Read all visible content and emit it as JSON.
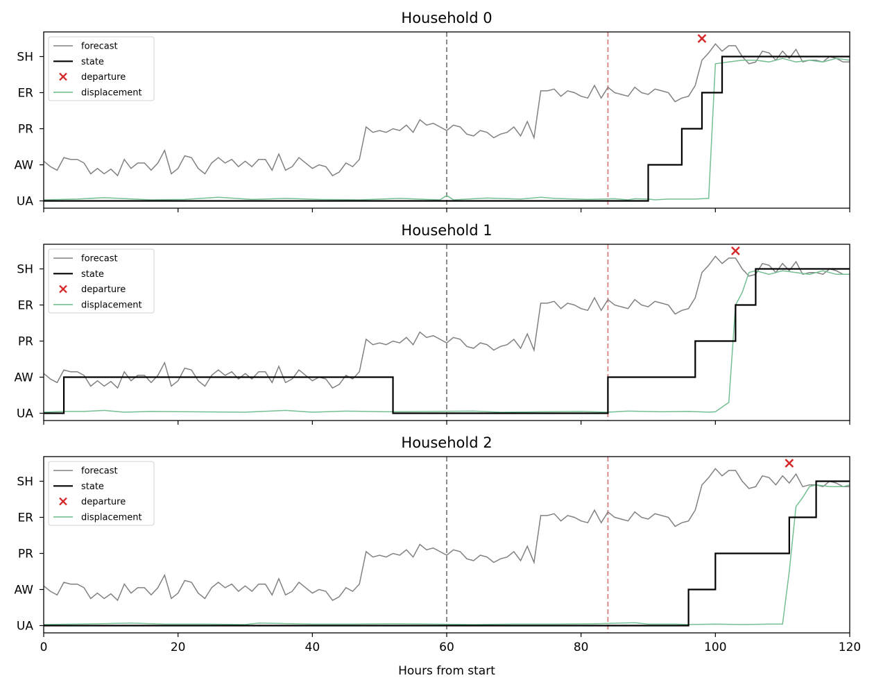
{
  "chart_data": {
    "type": "line",
    "xlabel": "Hours from start",
    "xlim": [
      0,
      120
    ],
    "x_ticks": [
      0,
      20,
      40,
      60,
      80,
      100,
      120
    ],
    "y_categories": [
      "UA",
      "AW",
      "PR",
      "ER",
      "SH"
    ],
    "vlines": [
      {
        "x": 60,
        "color": "#8c8c8c",
        "style": "dashed"
      },
      {
        "x": 84,
        "color": "#d98c8c",
        "style": "dashed"
      }
    ],
    "legend": {
      "placement": "upper-left",
      "entries": [
        {
          "label": "forecast",
          "color": "#808080",
          "kind": "line"
        },
        {
          "label": "state",
          "color": "#000000",
          "kind": "line"
        },
        {
          "label": "departure",
          "color": "#d62728",
          "kind": "marker"
        },
        {
          "label": "displacement",
          "color": "#73bf91",
          "kind": "line"
        }
      ]
    },
    "forecast": {
      "x": [
        0,
        1,
        2,
        3,
        4,
        5,
        6,
        7,
        8,
        9,
        10,
        11,
        12,
        13,
        14,
        15,
        16,
        17,
        18,
        19,
        20,
        21,
        22,
        23,
        24,
        25,
        26,
        27,
        28,
        29,
        30,
        31,
        32,
        33,
        34,
        35,
        36,
        37,
        38,
        39,
        40,
        41,
        42,
        43,
        44,
        45,
        46,
        47,
        48,
        49,
        50,
        51,
        52,
        53,
        54,
        55,
        56,
        57,
        58,
        59,
        60,
        61,
        62,
        63,
        64,
        65,
        66,
        67,
        68,
        69,
        70,
        71,
        72,
        73,
        74,
        75,
        76,
        77,
        78,
        79,
        80,
        81,
        82,
        83,
        84,
        85,
        86,
        87,
        88,
        89,
        90,
        91,
        92,
        93,
        94,
        95,
        96,
        97,
        98,
        99,
        100,
        101,
        102,
        103,
        104,
        105,
        106,
        107,
        108,
        109,
        110,
        111,
        112,
        113,
        114,
        115,
        116,
        117,
        118,
        119,
        120
      ],
      "y": [
        1.1,
        0.95,
        0.85,
        1.2,
        1.15,
        1.15,
        1.05,
        0.75,
        0.9,
        0.75,
        0.88,
        0.7,
        1.15,
        0.9,
        1.05,
        1.05,
        0.85,
        1.05,
        1.4,
        0.75,
        0.9,
        1.25,
        1.2,
        0.9,
        0.75,
        1.05,
        1.2,
        1.05,
        1.15,
        0.95,
        1.1,
        0.95,
        1.15,
        1.15,
        0.85,
        1.3,
        0.85,
        0.95,
        1.2,
        1.05,
        0.9,
        1.0,
        0.95,
        0.7,
        0.8,
        1.05,
        0.95,
        1.15,
        2.05,
        1.9,
        1.95,
        1.9,
        2.0,
        1.95,
        2.1,
        1.9,
        2.25,
        2.1,
        2.15,
        2.05,
        1.95,
        2.1,
        2.05,
        1.85,
        1.8,
        1.95,
        1.9,
        1.75,
        1.85,
        1.9,
        2.05,
        1.8,
        2.2,
        1.75,
        3.05,
        3.05,
        3.1,
        2.9,
        3.05,
        3.0,
        2.9,
        2.85,
        3.2,
        2.85,
        3.15,
        3.0,
        2.95,
        2.9,
        3.15,
        3.0,
        2.95,
        3.1,
        3.05,
        3.0,
        2.75,
        2.85,
        2.9,
        3.2,
        3.9,
        4.1,
        4.35,
        4.15,
        4.3,
        4.3,
        4.0,
        3.8,
        3.85,
        4.15,
        4.1,
        3.9,
        4.15,
        3.95,
        4.2,
        3.85,
        3.9,
        3.9,
        3.85,
        4.0,
        3.95,
        3.85,
        3.85
      ]
    },
    "panels": [
      {
        "title": "Household 0",
        "departure": {
          "x": 98,
          "y": 4.5
        },
        "state": {
          "x": [
            0,
            90,
            90,
            95,
            95,
            98,
            98,
            101,
            101,
            120
          ],
          "y": [
            0,
            0,
            1,
            1,
            2,
            2,
            3,
            3,
            4,
            4
          ]
        },
        "displacement": {
          "x": [
            0,
            5,
            9,
            16,
            21,
            26,
            31,
            36,
            41,
            47,
            53,
            57,
            59,
            60,
            61,
            66,
            71,
            74,
            76,
            81,
            85,
            87,
            88,
            90,
            91,
            93,
            95,
            97,
            99,
            100,
            102,
            104,
            106,
            108,
            110,
            112,
            114,
            116,
            118,
            120
          ],
          "y": [
            0.03,
            0.05,
            0.09,
            0.03,
            0.04,
            0.1,
            0.04,
            0.07,
            0.04,
            0.03,
            0.07,
            0.04,
            0.03,
            0.15,
            0.03,
            0.08,
            0.05,
            0.1,
            0.07,
            0.04,
            0.06,
            0.03,
            0.06,
            0.05,
            0.03,
            0.05,
            0.05,
            0.05,
            0.07,
            3.8,
            3.85,
            3.9,
            3.9,
            3.85,
            3.95,
            3.85,
            3.9,
            3.85,
            3.95,
            3.9
          ]
        }
      },
      {
        "title": "Household 1",
        "departure": {
          "x": 103,
          "y": 4.5
        },
        "state": {
          "x": [
            0,
            3,
            3,
            52,
            52,
            84,
            84,
            97,
            97,
            103,
            103,
            106,
            106,
            120
          ],
          "y": [
            0,
            0,
            1,
            1,
            0,
            0,
            1,
            1,
            2,
            2,
            3,
            3,
            4,
            4
          ]
        },
        "displacement": {
          "x": [
            0,
            3,
            6,
            9,
            12,
            16,
            22,
            30,
            36,
            40,
            45,
            51,
            58,
            64,
            68,
            74,
            80,
            84,
            87,
            92,
            96,
            99,
            100,
            102,
            103,
            104,
            105,
            106,
            108,
            110,
            112,
            114,
            116,
            118,
            120
          ],
          "y": [
            0.03,
            0.05,
            0.05,
            0.08,
            0.03,
            0.05,
            0.04,
            0.03,
            0.08,
            0.03,
            0.06,
            0.04,
            0.05,
            0.06,
            0.03,
            0.04,
            0.05,
            0.03,
            0.06,
            0.04,
            0.05,
            0.03,
            0.04,
            0.3,
            3.0,
            3.35,
            3.9,
            3.95,
            3.85,
            3.95,
            3.9,
            3.85,
            3.95,
            3.85,
            3.85
          ]
        }
      },
      {
        "title": "Household 2",
        "departure": {
          "x": 111,
          "y": 4.5
        },
        "state": {
          "x": [
            0,
            96,
            96,
            100,
            100,
            111,
            111,
            115,
            115,
            120
          ],
          "y": [
            0,
            0,
            1,
            1,
            2,
            2,
            3,
            3,
            4,
            4
          ]
        },
        "displacement": {
          "x": [
            0,
            8,
            13,
            18,
            24,
            30,
            32,
            40,
            46,
            52,
            58,
            64,
            70,
            76,
            82,
            88,
            90,
            94,
            96,
            100,
            104,
            108,
            110,
            111,
            112,
            113,
            114,
            115,
            117,
            119,
            120
          ],
          "y": [
            0.03,
            0.05,
            0.07,
            0.04,
            0.04,
            0.03,
            0.07,
            0.04,
            0.04,
            0.05,
            0.04,
            0.03,
            0.04,
            0.04,
            0.05,
            0.08,
            0.04,
            0.04,
            0.03,
            0.04,
            0.03,
            0.04,
            0.04,
            1.5,
            3.3,
            3.55,
            3.85,
            3.9,
            3.85,
            3.85,
            3.9
          ]
        }
      }
    ]
  }
}
